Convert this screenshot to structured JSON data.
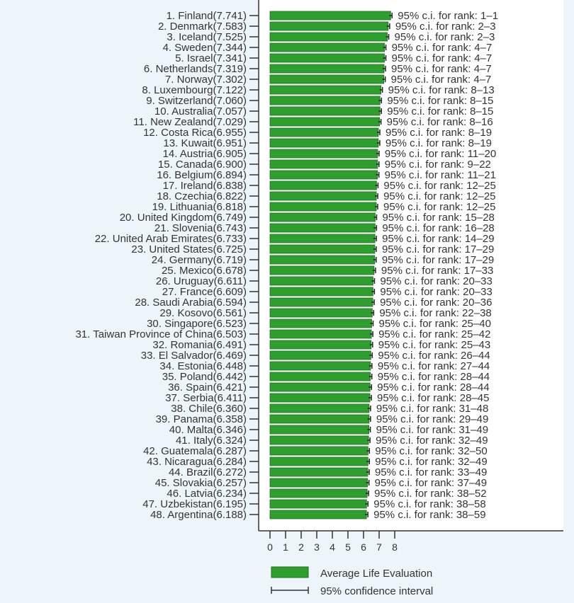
{
  "chart_data": {
    "type": "bar",
    "orientation": "horizontal",
    "title": "",
    "xlabel": "",
    "ylabel": "",
    "xlim": [
      0,
      8
    ],
    "xticks": [
      "0",
      "1",
      "2",
      "3",
      "4",
      "5",
      "6",
      "7",
      "8"
    ],
    "bar_color": "#2e9e2e",
    "ci_prefix": "95% c.i. for rank: ",
    "legend": {
      "placement": "bottom",
      "items": [
        "Average Life Evaluation",
        "95% confidence interval"
      ]
    },
    "categories": [
      "1. Finland",
      "2. Denmark",
      "3. Iceland",
      "4. Sweden",
      "5. Israel",
      "6. Netherlands",
      "7. Norway",
      "8. Luxembourg",
      "9. Switzerland",
      "10. Australia",
      "11. New Zealand",
      "12. Costa Rica",
      "13. Kuwait",
      "14. Austria",
      "15. Canada",
      "16. Belgium",
      "17. Ireland",
      "18. Czechia",
      "19. Lithuania",
      "20. United Kingdom",
      "21. Slovenia",
      "22. United Arab Emirates",
      "23. United States",
      "24. Germany",
      "25. Mexico",
      "26. Uruguay",
      "27. France",
      "28. Saudi Arabia",
      "29. Kosovo",
      "30. Singapore",
      "31. Taiwan Province of China",
      "32. Romania",
      "33. El Salvador",
      "34. Estonia",
      "35. Poland",
      "36. Spain",
      "37. Serbia",
      "38. Chile",
      "39. Panama",
      "40. Malta",
      "41. Italy",
      "42. Guatemala",
      "43. Nicaragua",
      "44. Brazil",
      "45. Slovakia",
      "46. Latvia",
      "47. Uzbekistan",
      "48. Argentina"
    ],
    "values": [
      7.741,
      7.583,
      7.525,
      7.344,
      7.341,
      7.319,
      7.302,
      7.122,
      7.06,
      7.057,
      7.029,
      6.955,
      6.951,
      6.905,
      6.9,
      6.894,
      6.838,
      6.822,
      6.818,
      6.749,
      6.743,
      6.733,
      6.725,
      6.719,
      6.678,
      6.611,
      6.609,
      6.594,
      6.561,
      6.523,
      6.503,
      6.491,
      6.469,
      6.448,
      6.442,
      6.421,
      6.411,
      6.36,
      6.358,
      6.346,
      6.324,
      6.287,
      6.284,
      6.272,
      6.257,
      6.234,
      6.195,
      6.188
    ],
    "value_labels": [
      "7.741",
      "7.583",
      "7.525",
      "7.344",
      "7.341",
      "7.319",
      "7.302",
      "7.122",
      "7.060",
      "7.057",
      "7.029",
      "6.955",
      "6.951",
      "6.905",
      "6.900",
      "6.894",
      "6.838",
      "6.822",
      "6.818",
      "6.749",
      "6.743",
      "6.733",
      "6.725",
      "6.719",
      "6.678",
      "6.611",
      "6.609",
      "6.594",
      "6.561",
      "6.523",
      "6.503",
      "6.491",
      "6.469",
      "6.448",
      "6.442",
      "6.421",
      "6.411",
      "6.360",
      "6.358",
      "6.346",
      "6.324",
      "6.287",
      "6.284",
      "6.272",
      "6.257",
      "6.234",
      "6.195",
      "6.188"
    ],
    "rank_ci": [
      "1–1",
      "2–3",
      "2–3",
      "4–7",
      "4–7",
      "4–7",
      "4–7",
      "8–13",
      "8–15",
      "8–15",
      "8–16",
      "8–19",
      "8–19",
      "11–20",
      "9–22",
      "11–21",
      "12–25",
      "12–25",
      "12–25",
      "15–28",
      "16–28",
      "14–29",
      "17–29",
      "17–29",
      "17–33",
      "20–33",
      "20–33",
      "20–36",
      "22–38",
      "25–40",
      "25–42",
      "25–43",
      "26–44",
      "27–44",
      "28–44",
      "28–44",
      "28–45",
      "31–48",
      "29–49",
      "31–49",
      "32–49",
      "32–50",
      "32–49",
      "33–49",
      "37–49",
      "38–52",
      "38–58",
      "38–59"
    ]
  }
}
